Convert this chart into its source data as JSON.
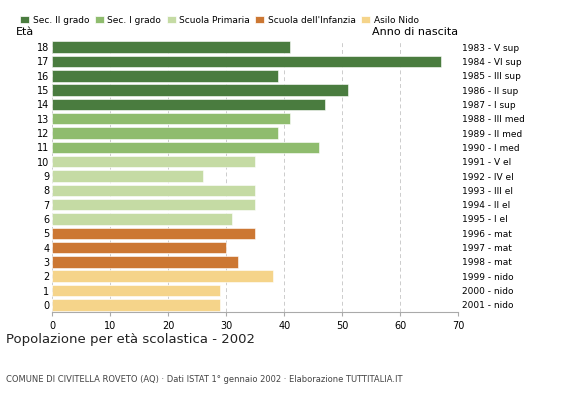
{
  "ages": [
    18,
    17,
    16,
    15,
    14,
    13,
    12,
    11,
    10,
    9,
    8,
    7,
    6,
    5,
    4,
    3,
    2,
    1,
    0
  ],
  "values": [
    41,
    67,
    39,
    51,
    47,
    41,
    39,
    46,
    35,
    26,
    35,
    35,
    31,
    35,
    30,
    32,
    38,
    29,
    29
  ],
  "colors": [
    "#4a7c3f",
    "#4a7c3f",
    "#4a7c3f",
    "#4a7c3f",
    "#4a7c3f",
    "#8fbc6e",
    "#8fbc6e",
    "#8fbc6e",
    "#c5dba4",
    "#c5dba4",
    "#c5dba4",
    "#c5dba4",
    "#c5dba4",
    "#cc7733",
    "#cc7733",
    "#cc7733",
    "#f5d48a",
    "#f5d48a",
    "#f5d48a"
  ],
  "right_labels": [
    "1983 - V sup",
    "1984 - VI sup",
    "1985 - III sup",
    "1986 - II sup",
    "1987 - I sup",
    "1988 - III med",
    "1989 - II med",
    "1990 - I med",
    "1991 - V el",
    "1992 - IV el",
    "1993 - III el",
    "1994 - II el",
    "1995 - I el",
    "1996 - mat",
    "1997 - mat",
    "1998 - mat",
    "1999 - nido",
    "2000 - nido",
    "2001 - nido"
  ],
  "legend_labels": [
    "Sec. II grado",
    "Sec. I grado",
    "Scuola Primaria",
    "Scuola dell'Infanzia",
    "Asilo Nido"
  ],
  "legend_colors": [
    "#4a7c3f",
    "#8fbc6e",
    "#c5dba4",
    "#cc7733",
    "#f5d48a"
  ],
  "title": "Popolazione per età scolastica - 2002",
  "subtitle": "COMUNE DI CIVITELLA ROVETO (AQ) · Dati ISTAT 1° gennaio 2002 · Elaborazione TUTTITALIA.IT",
  "left_axis_label": "Età",
  "right_axis_label": "Anno di nascita",
  "xlim": [
    0,
    70
  ],
  "xticks": [
    0,
    10,
    20,
    30,
    40,
    50,
    60,
    70
  ],
  "bar_height": 0.8,
  "background_color": "#ffffff",
  "grid_color": "#cccccc"
}
